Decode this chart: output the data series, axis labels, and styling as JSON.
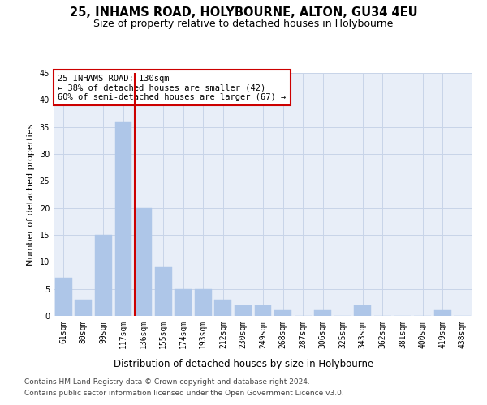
{
  "title1": "25, INHAMS ROAD, HOLYBOURNE, ALTON, GU34 4EU",
  "title2": "Size of property relative to detached houses in Holybourne",
  "xlabel": "Distribution of detached houses by size in Holybourne",
  "ylabel": "Number of detached properties",
  "categories": [
    "61sqm",
    "80sqm",
    "99sqm",
    "117sqm",
    "136sqm",
    "155sqm",
    "174sqm",
    "193sqm",
    "212sqm",
    "230sqm",
    "249sqm",
    "268sqm",
    "287sqm",
    "306sqm",
    "325sqm",
    "343sqm",
    "362sqm",
    "381sqm",
    "400sqm",
    "419sqm",
    "438sqm"
  ],
  "values": [
    7,
    3,
    15,
    36,
    20,
    9,
    5,
    5,
    3,
    2,
    2,
    1,
    0,
    1,
    0,
    2,
    0,
    0,
    0,
    1,
    0
  ],
  "bar_color": "#aec6e8",
  "bar_edge_color": "#aec6e8",
  "vline_color": "#cc0000",
  "annotation_title": "25 INHAMS ROAD: 130sqm",
  "annotation_line1": "← 38% of detached houses are smaller (42)",
  "annotation_line2": "60% of semi-detached houses are larger (67) →",
  "annotation_box_color": "#ffffff",
  "annotation_box_edge": "#cc0000",
  "ylim": [
    0,
    45
  ],
  "yticks": [
    0,
    5,
    10,
    15,
    20,
    25,
    30,
    35,
    40,
    45
  ],
  "footer1": "Contains HM Land Registry data © Crown copyright and database right 2024.",
  "footer2": "Contains public sector information licensed under the Open Government Licence v3.0.",
  "bg_color": "#ffffff",
  "plot_bg_color": "#e8eef8",
  "grid_color": "#c8d4e8",
  "title1_fontsize": 10.5,
  "title2_fontsize": 9,
  "xlabel_fontsize": 8.5,
  "ylabel_fontsize": 8,
  "tick_fontsize": 7,
  "footer_fontsize": 6.5,
  "annotation_fontsize": 7.5
}
